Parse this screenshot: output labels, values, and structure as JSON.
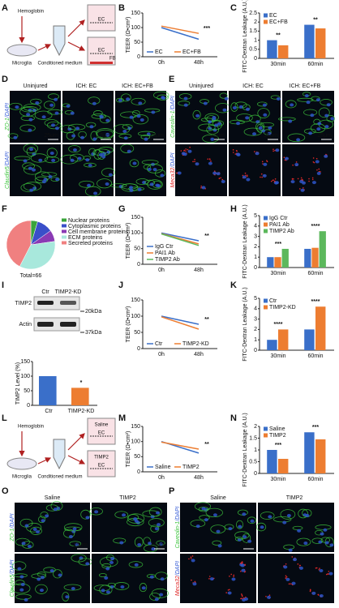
{
  "panel_labels": [
    "A",
    "B",
    "C",
    "D",
    "E",
    "F",
    "G",
    "H",
    "I",
    "J",
    "K",
    "L",
    "M",
    "N",
    "O",
    "P"
  ],
  "diagram_a": {
    "stimulus": "Hemoglobin",
    "cells": "Microglia",
    "medium": "Conditioned medium",
    "well_1": "EC",
    "well_2_top": "EC",
    "well_2_bottom": "FB"
  },
  "diagram_l": {
    "stimulus": "Hemoglobin",
    "cells": "Microglia",
    "medium": "Conditioned medium",
    "well_1_title": "Saline",
    "well_1": "EC",
    "well_2_title": "TIMP2",
    "well_2": "EC"
  },
  "image_d": {
    "columns": [
      "Uninjured",
      "ICH: EC",
      "ICH: EC+FB"
    ],
    "rows": [
      {
        "marker": "ZO-1",
        "stain": "/DAPI",
        "color": "#3cc43c"
      },
      {
        "marker": "Claudin5",
        "stain": "/DAPI",
        "color": "#3cc43c"
      }
    ],
    "scale_bar": "25μm"
  },
  "image_e": {
    "columns": [
      "Uninjured",
      "ICH: EC",
      "ICH: EC+FB"
    ],
    "rows": [
      {
        "marker": "Caveolin-1",
        "stain": "/DAPI",
        "color": "#3cc43c"
      },
      {
        "marker": "Meca32",
        "stain": "/DAPI",
        "color": "#e02828"
      }
    ],
    "scale_bar": "25μm"
  },
  "image_o": {
    "columns": [
      "Saline",
      "TIMP2"
    ],
    "rows": [
      {
        "marker": "ZO-1",
        "stain": "/DAPI",
        "color": "#3cc43c"
      },
      {
        "marker": "Claudin5",
        "stain": "/DAPI",
        "color": "#3cc43c"
      }
    ],
    "scale_bar": "25μm"
  },
  "image_p": {
    "columns": [
      "Saline",
      "TIMP2"
    ],
    "rows": [
      {
        "marker": "Caveolin-1",
        "stain": "/DAPI",
        "color": "#3cc43c"
      },
      {
        "marker": "Meca32",
        "stain": "/DAPI",
        "color": "#e02828"
      }
    ],
    "scale_bar": "25μm"
  },
  "blot_i": {
    "lanes": [
      "Ctr",
      "TIMP2-KD"
    ],
    "proteins": [
      "TIMP2",
      "Actin"
    ],
    "markers": [
      "20kDa",
      "37kDa"
    ]
  },
  "chart_data": [
    {
      "type": "line",
      "categories": [
        "0h",
        "48h"
      ],
      "y_label": "TEER (Ω•cm²)",
      "ylim": [
        0,
        150
      ],
      "yticks": [
        0,
        50,
        100,
        150
      ],
      "series": [
        {
          "name": "EC",
          "color": "#3a6fc9",
          "values": [
            100,
            60
          ]
        },
        {
          "name": "EC+FB",
          "color": "#ed7d31",
          "values": [
            105,
            80
          ]
        }
      ],
      "annotations": [
        null,
        "***"
      ],
      "legend": "lower left"
    },
    {
      "type": "bar",
      "categories": [
        "30min",
        "60min"
      ],
      "y_label": "FITC-Dextran Leakage (A.U.)",
      "ylim": [
        0,
        2.5
      ],
      "yticks": [
        0,
        0.5,
        1,
        1.5,
        2,
        2.5
      ],
      "series": [
        {
          "name": "EC",
          "color": "#3a6fc9",
          "values": [
            1.0,
            1.85
          ]
        },
        {
          "name": "EC+FB",
          "color": "#ed7d31",
          "values": [
            0.72,
            1.65
          ]
        }
      ],
      "annotations": [
        "**",
        "**"
      ],
      "legend": "upper left"
    },
    {
      "type": "pie",
      "categories": [
        "Nuclear proteins",
        "Cytoplasmic proteins",
        "Cell membrane proteins",
        "ECM proteins",
        "Secreted proteins"
      ],
      "values": [
        3,
        7,
        5,
        23,
        28
      ],
      "colors": [
        "#3aa43a",
        "#3a4fc9",
        "#8a3ab4",
        "#a8e8dc",
        "#f08080"
      ],
      "total_label": "Total=66"
    },
    {
      "type": "line",
      "categories": [
        "0h",
        "48h"
      ],
      "y_label": "TEER (Ω•cm²)",
      "ylim": [
        0,
        150
      ],
      "yticks": [
        0,
        50,
        100,
        150
      ],
      "series": [
        {
          "name": "IgG Ctr",
          "color": "#3a6fc9",
          "values": [
            100,
            75
          ]
        },
        {
          "name": "PAI1 Ab",
          "color": "#ed7d31",
          "values": [
            98,
            65
          ]
        },
        {
          "name": "TIMP2 Ab",
          "color": "#5cb85c",
          "values": [
            97,
            60
          ]
        }
      ],
      "annotations": [
        null,
        "**"
      ],
      "legend": "lower left"
    },
    {
      "type": "bar",
      "categories": [
        "30min",
        "60min"
      ],
      "y_label": "FITC-Dextran Leakage (A.U.)",
      "ylim": [
        0,
        5
      ],
      "yticks": [
        0,
        1,
        2,
        3,
        4,
        5
      ],
      "series": [
        {
          "name": "IgG Ctr",
          "color": "#3a6fc9",
          "values": [
            1.0,
            1.8
          ]
        },
        {
          "name": "PAI1 Ab",
          "color": "#ed7d31",
          "values": [
            1.0,
            1.9
          ]
        },
        {
          "name": "TIMP2 Ab",
          "color": "#5cb85c",
          "values": [
            1.8,
            3.5
          ]
        }
      ],
      "annotations": [
        "***",
        "****"
      ],
      "legend": "upper left"
    },
    {
      "type": "bar",
      "categories": [
        "Ctr",
        "TIMP2-KD"
      ],
      "y_label": "TIMP2 Level (%)",
      "ylim": [
        0,
        150
      ],
      "yticks": [
        0,
        50,
        100,
        150
      ],
      "series": [
        {
          "name": null,
          "color": "#3a6fc9",
          "values": [
            100,
            null
          ]
        },
        {
          "name": null,
          "color": "#ed7d31",
          "values": [
            null,
            60
          ]
        }
      ],
      "annotations": [
        null,
        "*"
      ],
      "legend": null
    },
    {
      "type": "line",
      "categories": [
        "0h",
        "48h"
      ],
      "y_label": "TEER (Ω•cm²)",
      "ylim": [
        0,
        150
      ],
      "yticks": [
        0,
        50,
        100,
        150
      ],
      "series": [
        {
          "name": "Ctr",
          "color": "#3a6fc9",
          "values": [
            100,
            75
          ]
        },
        {
          "name": "TIMP2-KD",
          "color": "#ed7d31",
          "values": [
            98,
            60
          ]
        }
      ],
      "annotations": [
        null,
        "**"
      ],
      "legend": "lower left"
    },
    {
      "type": "bar",
      "categories": [
        "30min",
        "60min"
      ],
      "y_label": "FITC-Dextran Leakage (A.U.)",
      "ylim": [
        0,
        5
      ],
      "yticks": [
        0,
        1,
        2,
        3,
        4,
        5
      ],
      "series": [
        {
          "name": "Ctr",
          "color": "#3a6fc9",
          "values": [
            1.0,
            2.0
          ]
        },
        {
          "name": "TIMP2-KD",
          "color": "#ed7d31",
          "values": [
            2.0,
            4.2
          ]
        }
      ],
      "annotations": [
        "****",
        "****"
      ],
      "legend": "upper left"
    },
    {
      "type": "line",
      "categories": [
        "0h",
        "48h"
      ],
      "y_label": "TEER (Ω•cm²)",
      "ylim": [
        0,
        150
      ],
      "yticks": [
        0,
        50,
        100,
        150
      ],
      "series": [
        {
          "name": "Saline",
          "color": "#3a6fc9",
          "values": [
            100,
            62
          ]
        },
        {
          "name": "TIMP2",
          "color": "#ed7d31",
          "values": [
            98,
            75
          ]
        }
      ],
      "annotations": [
        null,
        "**"
      ],
      "legend": "lower left"
    },
    {
      "type": "bar",
      "categories": [
        "30min",
        "60min"
      ],
      "y_label": "FITC-Dextran Leakage (A.U.)",
      "ylim": [
        0,
        2
      ],
      "yticks": [
        0,
        0.5,
        1,
        1.5,
        2
      ],
      "series": [
        {
          "name": "Saline",
          "color": "#3a6fc9",
          "values": [
            1.0,
            1.75
          ]
        },
        {
          "name": "TIMP2",
          "color": "#ed7d31",
          "values": [
            0.62,
            1.45
          ]
        }
      ],
      "annotations": [
        "***",
        "***"
      ],
      "legend": "upper left"
    }
  ]
}
